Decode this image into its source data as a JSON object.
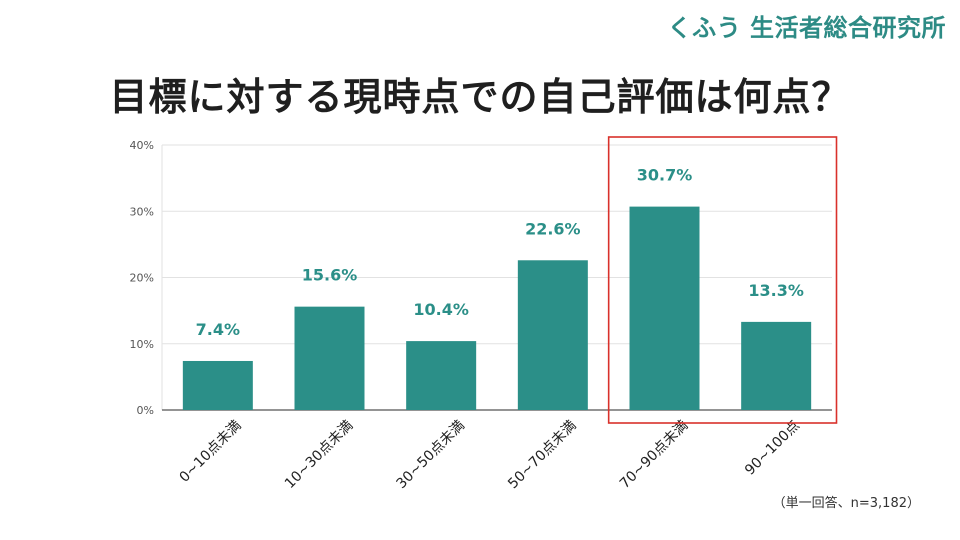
{
  "brand": "くふう 生活者総合研究所",
  "note": "（単一回答、n=3,182）",
  "colors": {
    "bar": "#2b8f88",
    "label": "#2b8f88",
    "highlight": "#d9312b",
    "grid": "#e2e2e2",
    "axis": "#555555"
  },
  "chart_data": {
    "type": "bar",
    "title": "目標に対する現時点での自己評価は何点？",
    "categories": [
      "0~10点未満",
      "10~30点未満",
      "30~50点未満",
      "50~70点未満",
      "70~90点未満",
      "90~100点"
    ],
    "values": [
      7.4,
      15.6,
      10.4,
      22.6,
      30.7,
      13.3
    ],
    "value_labels": [
      "7.4%",
      "15.6%",
      "10.4%",
      "22.6%",
      "30.7%",
      "13.3%"
    ],
    "ylim": [
      0,
      40
    ],
    "yticks": [
      0,
      10,
      20,
      30,
      40
    ],
    "ytick_labels": [
      "0%",
      "10%",
      "20%",
      "30%",
      "40%"
    ],
    "xlabel": "",
    "ylabel": "",
    "grid": true,
    "highlight_categories": [
      "70~90点未満",
      "90~100点"
    ]
  }
}
